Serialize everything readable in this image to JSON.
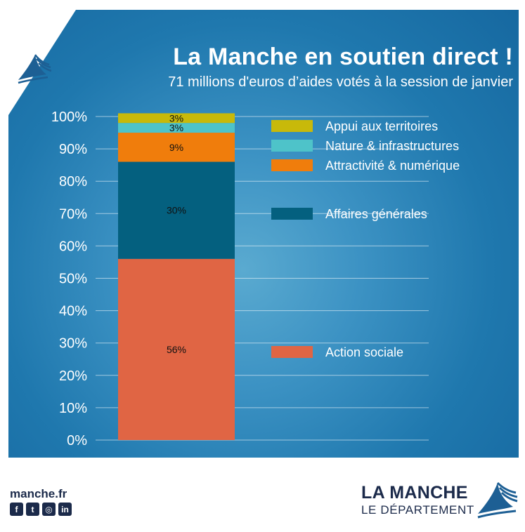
{
  "header": {
    "title": "La Manche en soutien direct !",
    "subtitle": "71 millions d'euros d’aides votés à la session de janvier"
  },
  "chart_data": {
    "type": "bar",
    "stacked": true,
    "ylim": [
      0,
      100
    ],
    "y_ticks": [
      "0%",
      "10%",
      "20%",
      "30%",
      "40%",
      "50%",
      "60%",
      "70%",
      "80%",
      "90%",
      "100%"
    ],
    "grid": true,
    "legend_position": "right",
    "series": [
      {
        "name": "Action sociale",
        "value": 56,
        "label": "56%",
        "color": "#e06544"
      },
      {
        "name": "Affaires générales",
        "value": 30,
        "label": "30%",
        "color": "#04607f"
      },
      {
        "name": "Attractivité & numérique",
        "value": 9,
        "label": "9%",
        "color": "#f07d0c"
      },
      {
        "name": "Nature & infrastructures",
        "value": 3,
        "label": "3%",
        "color": "#4ec3c9"
      },
      {
        "name": "Appui aux territoires",
        "value": 3,
        "label": "3%",
        "color": "#c8b90a"
      }
    ]
  },
  "footer": {
    "url": "manche.fr",
    "socials": [
      {
        "icon": "facebook-icon",
        "glyph": "f"
      },
      {
        "icon": "twitter-icon",
        "glyph": "t"
      },
      {
        "icon": "instagram-icon",
        "glyph": "◎"
      },
      {
        "icon": "linkedin-icon",
        "glyph": "in"
      }
    ],
    "brand_name": "LA MANCHE",
    "brand_sub": "LE DÉPARTEMENT"
  }
}
